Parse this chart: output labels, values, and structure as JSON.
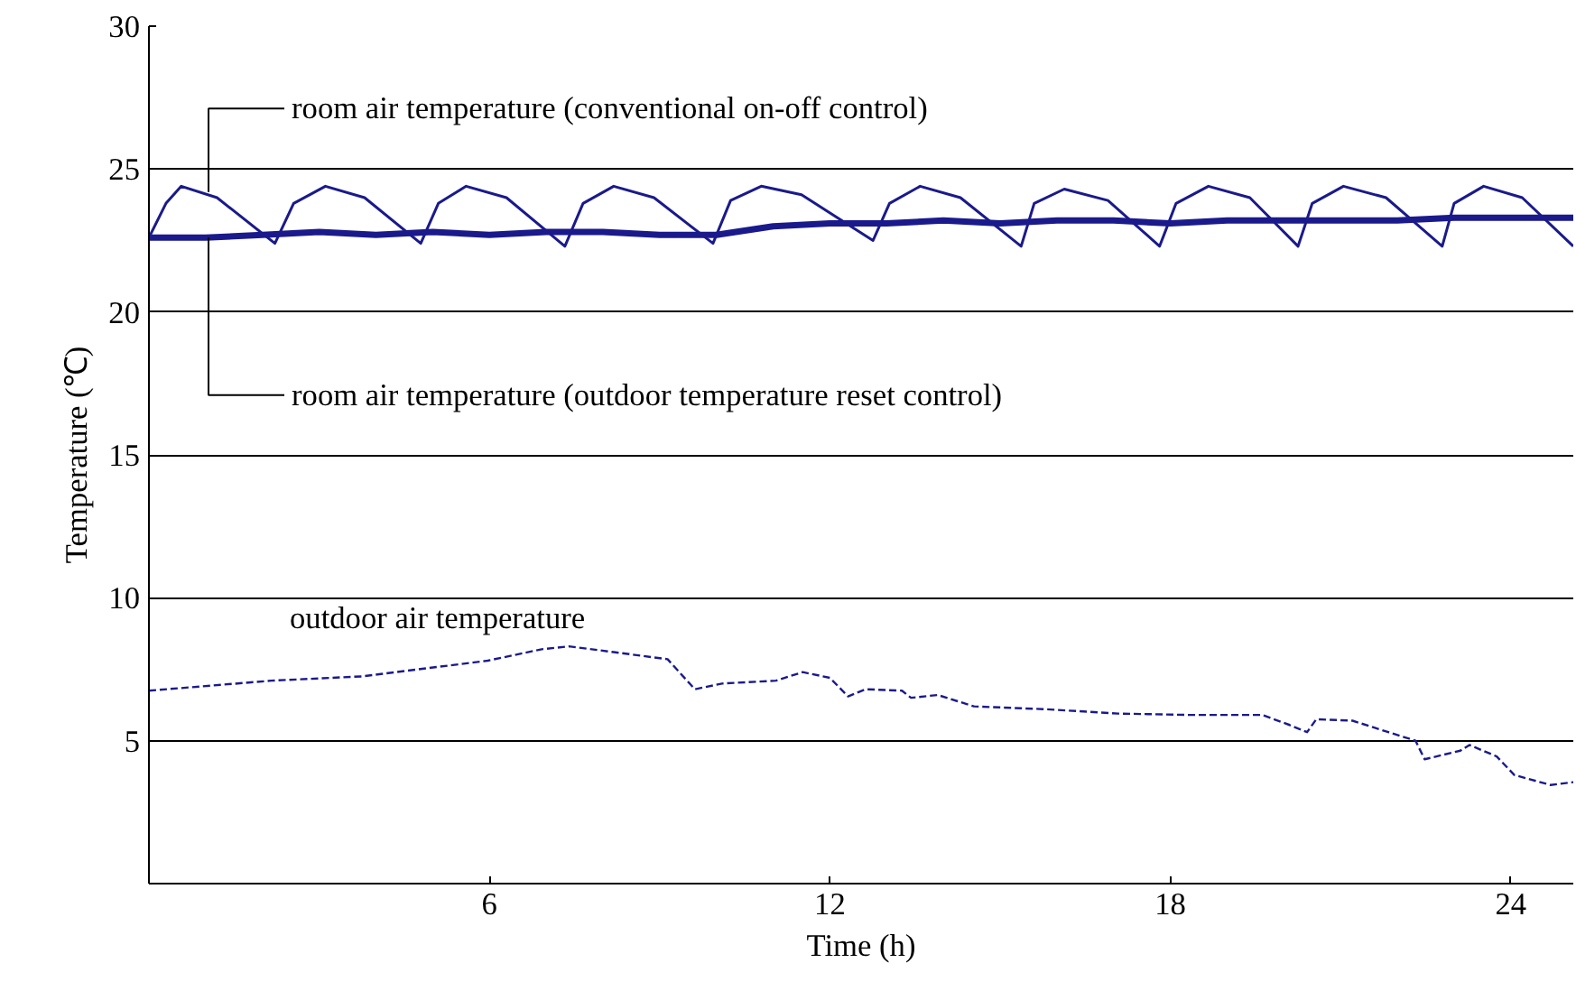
{
  "chart_data": {
    "type": "line",
    "xlabel": "Time (h)",
    "ylabel": "Temperature (℃)",
    "xlim": [
      0,
      25.1
    ],
    "ylim": [
      0,
      30
    ],
    "xticks": [
      6,
      12,
      18,
      24
    ],
    "yticks": [
      5,
      10,
      15,
      20,
      25,
      30
    ],
    "grid": "y",
    "marker": "none",
    "series": [
      {
        "color": "#1a1a8c",
        "line_style": "solid",
        "x": [
          0,
          0.3,
          0.57,
          1.2,
          2.22,
          2.55,
          3.11,
          3.8,
          4.79,
          5.1,
          5.59,
          6.3,
          7.33,
          7.65,
          8.19,
          8.9,
          9.94,
          10.25,
          10.79,
          11.5,
          12.76,
          13.05,
          13.59,
          14.3,
          15.37,
          15.6,
          16.13,
          16.9,
          17.81,
          18.1,
          18.67,
          19.4,
          20.25,
          20.5,
          21.05,
          21.8,
          22.79,
          23.0,
          23.52,
          24.2,
          25.1
        ],
        "values": [
          22.6,
          23.8,
          24.4,
          24.0,
          22.4,
          23.8,
          24.4,
          24.0,
          22.4,
          23.8,
          24.4,
          24.0,
          22.3,
          23.8,
          24.4,
          24.0,
          22.4,
          23.9,
          24.4,
          24.1,
          22.5,
          23.8,
          24.4,
          24.0,
          22.3,
          23.8,
          24.3,
          23.9,
          22.3,
          23.8,
          24.4,
          24.0,
          22.3,
          23.8,
          24.4,
          24.0,
          22.3,
          23.8,
          24.4,
          24.0,
          22.3
        ]
      },
      {
        "color": "#1a1a8c",
        "line_style": "solid",
        "x": [
          0,
          1,
          2,
          3,
          4,
          5,
          6,
          7,
          8,
          9,
          10,
          11,
          12,
          13,
          14,
          15,
          16,
          17,
          18,
          19,
          20,
          21,
          22,
          23,
          24,
          25.1
        ],
        "values": [
          22.6,
          22.6,
          22.7,
          22.8,
          22.7,
          22.8,
          22.7,
          22.8,
          22.8,
          22.7,
          22.7,
          23.0,
          23.1,
          23.1,
          23.2,
          23.1,
          23.2,
          23.2,
          23.1,
          23.2,
          23.2,
          23.2,
          23.2,
          23.3,
          23.3,
          23.3
        ]
      },
      {
        "color": "#1a1a8c",
        "line_style": "dashed",
        "x": [
          0,
          2.16,
          3.75,
          5.97,
          6.92,
          7.4,
          8.19,
          9.14,
          9.62,
          10.1,
          11.05,
          11.52,
          12.0,
          12.32,
          12.63,
          13.27,
          13.43,
          13.9,
          14.54,
          15.81,
          17.08,
          18.35,
          19.62,
          20.1,
          20.41,
          20.57,
          21.21,
          21.84,
          22.32,
          22.48,
          23.11,
          23.27,
          23.75,
          24.06,
          24.7,
          25.1
        ],
        "values": [
          6.75,
          7.1,
          7.25,
          7.8,
          8.2,
          8.3,
          8.1,
          7.85,
          6.8,
          7.0,
          7.1,
          7.4,
          7.2,
          6.55,
          6.8,
          6.75,
          6.5,
          6.6,
          6.2,
          6.1,
          5.95,
          5.9,
          5.9,
          5.55,
          5.3,
          5.75,
          5.7,
          5.3,
          5.0,
          4.35,
          4.65,
          4.85,
          4.45,
          3.8,
          3.45,
          3.55
        ]
      }
    ],
    "annotations": [
      {
        "text": "room air temperature (conventional on-off control)",
        "x": 1.05,
        "y": 24.2
      },
      {
        "text": "room air temperature (outdoor temperature reset control)",
        "x": 1.05,
        "y": 22.6
      },
      "outdoor air temperature"
    ]
  }
}
